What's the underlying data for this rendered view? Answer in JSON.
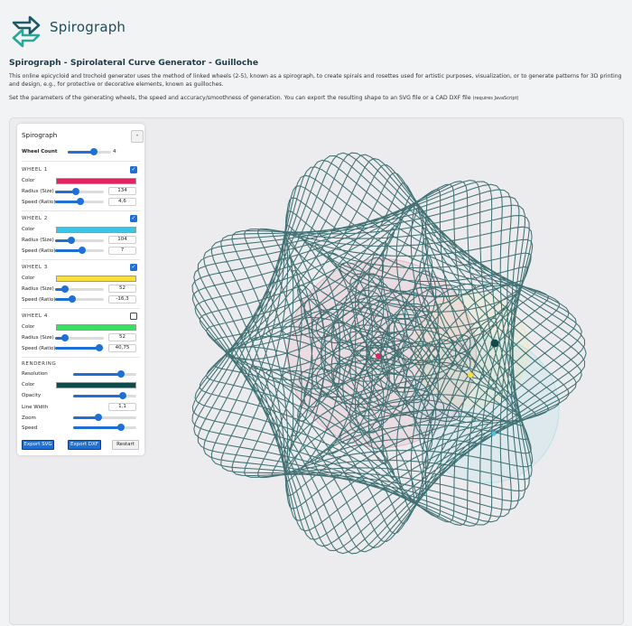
{
  "brand": {
    "name": "Spirograph",
    "logo_icon": "spirograph-logo-icon",
    "accent": "#1e5b67"
  },
  "page": {
    "title": "Spirograph - Spirolateral Curve Generator - Guilloche",
    "description": "This online epicycloid and trochoid generator uses the method of linked wheels (2-5), known as a spirograph, to create spirals and rosettes used for artistic purposes, visualization, or to generate patterns for 3D printing and design, e.g., for protective or decorative elements, known as guilloches.",
    "instructions": "Set the parameters of the generating wheels, the speed and accuracy/smoothness of generation. You can export the resulting shape to an SVG file or a CAD DXF file",
    "instructions_note": "(requires JavaScript)"
  },
  "panel": {
    "title": "Spirograph",
    "collapse_label": "-",
    "wheel_count_label": "Wheel Count",
    "wheel_count": "4",
    "wheel_count_fraction": 0.6,
    "color_label": "Color",
    "radius_label": "Radius (Size)",
    "speed_label": "Speed (Ratio)",
    "wheels": [
      {
        "title": "WHEEL 1",
        "enabled": true,
        "color": "#e0245e",
        "radius": "134",
        "speed": "4,6",
        "radius_fraction": 0.42,
        "speed_fraction": 0.52
      },
      {
        "title": "WHEEL 2",
        "enabled": true,
        "color": "#3cc6e6",
        "radius": "104",
        "speed": "7",
        "radius_fraction": 0.33,
        "speed_fraction": 0.55
      },
      {
        "title": "WHEEL 3",
        "enabled": true,
        "color": "#f7e03b",
        "radius": "52",
        "speed": "-16,3",
        "radius_fraction": 0.2,
        "speed_fraction": 0.35
      },
      {
        "title": "WHEEL 4",
        "enabled": false,
        "color": "#3ddc63",
        "radius": "52",
        "speed": "40,75",
        "radius_fraction": 0.2,
        "speed_fraction": 0.9
      }
    ],
    "rendering": {
      "title": "RENDERING",
      "resolution_label": "Resolution",
      "resolution_fraction": 0.75,
      "color_label": "Color",
      "color": "#114a4a",
      "opacity_label": "Opacity",
      "opacity_fraction": 0.78,
      "line_width_label": "Line Width",
      "line_width": "1,1",
      "zoom_label": "Zoom",
      "zoom_fraction": 0.4,
      "speed_label": "Speed",
      "speed_fraction": 0.75
    },
    "buttons": {
      "export_svg": "Export SVG",
      "export_dxf": "Export DXF",
      "restart": "Restart"
    }
  },
  "curve": {
    "line_color": "#2f6466",
    "wheel_radii": [
      134,
      104,
      52
    ],
    "wheel_speeds": [
      4.6,
      7,
      -16.3
    ]
  }
}
